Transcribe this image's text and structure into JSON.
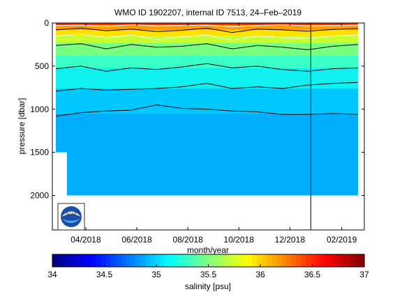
{
  "chart_data": {
    "type": "heatmap",
    "title": "WMO ID 1902207, internal ID 7513, 24–Feb–2019",
    "xlabel": "month/year",
    "ylabel": "pressure [dbar]",
    "x_tick_labels": [
      "04/2018",
      "06/2018",
      "08/2018",
      "10/2018",
      "12/2018",
      "02/2019"
    ],
    "x_range": [
      "2018-02-20",
      "2019-02-28"
    ],
    "y_ticks": [
      0,
      500,
      1000,
      1500,
      2000
    ],
    "y_range": [
      0,
      2400
    ],
    "y_axis_inverted": true,
    "profile_max_pressure": 2000,
    "profile_max_pressure_early": 1500,
    "early_shallow_period": [
      "2018-02-20",
      "2018-03-01"
    ],
    "marker_line_date": "2018-12-26",
    "colorbar": {
      "label": "salinity [psu]",
      "tick_labels": [
        "34",
        "34.5",
        "35",
        "35.5",
        "36",
        "36.5",
        "37"
      ],
      "range": [
        34,
        37
      ],
      "colormap": "jet"
    },
    "layers": [
      {
        "salinity": 36.6,
        "top": 0,
        "bottom": 25,
        "color": "#ff2a00"
      },
      {
        "salinity": 36.3,
        "top": 25,
        "bottom": 80,
        "color": "#ff9a00"
      },
      {
        "salinity": 36.0,
        "top": 80,
        "bottom": 150,
        "color": "#ffe000"
      },
      {
        "salinity": 35.8,
        "top": 150,
        "bottom": 230,
        "color": "#c8ff30"
      },
      {
        "salinity": 35.6,
        "top": 230,
        "bottom": 380,
        "color": "#78ff80"
      },
      {
        "salinity": 35.4,
        "top": 380,
        "bottom": 520,
        "color": "#38ffc8"
      },
      {
        "salinity": 35.2,
        "top": 520,
        "bottom": 760,
        "color": "#10f0f0"
      },
      {
        "salinity": 35.1,
        "top": 760,
        "bottom": 1050,
        "color": "#00c8ff"
      },
      {
        "salinity": 35.0,
        "top": 1050,
        "bottom": 2000,
        "color": "#00b0ff"
      }
    ],
    "contours_dbar": [
      {
        "color": "#ffffff",
        "depths": [
          30,
          25,
          40,
          20,
          35,
          30,
          25,
          45,
          30,
          20,
          35,
          30,
          25
        ]
      },
      {
        "color": "#000000",
        "depths": [
          80,
          60,
          90,
          70,
          100,
          85,
          60,
          110,
          70,
          80,
          95,
          75,
          65
        ]
      },
      {
        "color": "#ffffff",
        "depths": [
          150,
          130,
          170,
          140,
          190,
          160,
          140,
          200,
          150,
          170,
          180,
          150,
          140
        ]
      },
      {
        "color": "#000000",
        "depths": [
          260,
          240,
          300,
          250,
          280,
          270,
          240,
          300,
          260,
          280,
          310,
          270,
          250
        ]
      },
      {
        "color": "#000000",
        "depths": [
          530,
          500,
          560,
          520,
          540,
          510,
          470,
          520,
          500,
          540,
          560,
          530,
          520
        ]
      },
      {
        "color": "#000000",
        "depths": [
          790,
          760,
          780,
          770,
          760,
          740,
          700,
          760,
          740,
          760,
          720,
          700,
          690
        ]
      },
      {
        "color": "#000000",
        "depths": [
          1080,
          1040,
          1020,
          1010,
          950,
          990,
          1000,
          1020,
          1030,
          1060,
          1060,
          1050,
          1060
        ]
      }
    ]
  },
  "logo": {
    "name": "noaa-logo",
    "text": "NOAA"
  }
}
